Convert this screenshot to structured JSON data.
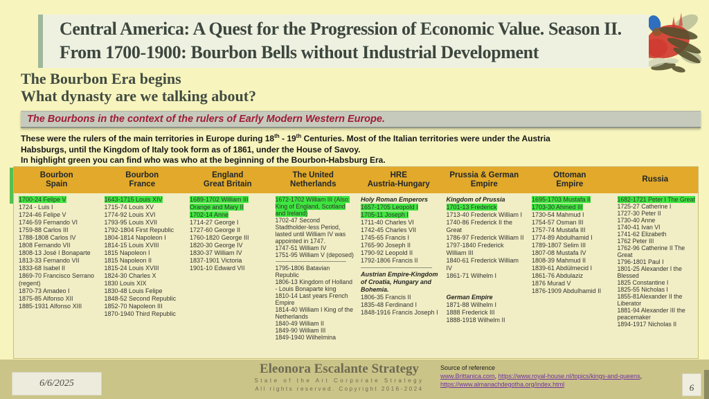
{
  "slide": {
    "title_line1": "Central America:  A Quest for the Progression of Economic Value. Season II.",
    "title_line2": "From 1700-1900: Bourbon Bells without Industrial Development",
    "subtitle_line1": "The Bourbon Era begins",
    "subtitle_line2": "What dynasty are we talking about?",
    "banner": "The Bourbons in the context of the rulers of Early Modern Western Europe.",
    "intro_lines": [
      "These were the rulers of the main territories in Europe during 18th - 19th Centuries. Most of the  Italian territories were under the Austria",
      "Habsburgs, until the Kingdom of Italy took form as of 1861, under the House of Savoy.",
      "In highlight green you can find who was who at the beginning of the Bourbon-Habsburg Era."
    ]
  },
  "table": {
    "highlight_color": "#3FE53F",
    "header_color": "#E2A92A",
    "columns": [
      {
        "header": [
          "Bourbon",
          "Spain"
        ],
        "items": [
          {
            "t": "1700-24 Felipe V",
            "h": true
          },
          {
            "t": "1724 - Luis I"
          },
          {
            "t": "1724-46 Felipe V"
          },
          {
            "t": "1746-59 Fernando VI"
          },
          {
            "t": "1759-88 Carlos III"
          },
          {
            "t": "1788-1808 Carlos IV"
          },
          {
            "t": "1808 Fernando VII"
          },
          {
            "t": "1808-13 José I Bonaparte"
          },
          {
            "t": "1813-33 Fernando VII"
          },
          {
            "t": "1833-68 Isabel II"
          },
          {
            "t": "1869-70 Francisco Serrano (regent)"
          },
          {
            "t": "1870-73 Amadeo I"
          },
          {
            "t": "1875-85 Alfonso XII"
          },
          {
            "t": "1885-1931 Alfonso XIII"
          }
        ]
      },
      {
        "header": [
          "Bourbon",
          "France"
        ],
        "items": [
          {
            "t": "1643-1715 Louis XIV",
            "h": true
          },
          {
            "t": "1715-74 Louis XV"
          },
          {
            "t": "1774-92 Louis XVI"
          },
          {
            "t": "1793-95 Louis XVII"
          },
          {
            "t": "1792-1804 First Republic"
          },
          {
            "t": "1804-1814 Napoleon I"
          },
          {
            "t": "1814-15 Louis XVIII"
          },
          {
            "t": "1815 Napoleon I"
          },
          {
            "t": "1815 Napoleon II"
          },
          {
            "t": "1815-24 Louis XVIII"
          },
          {
            "t": "1824-30 Charles X"
          },
          {
            "t": "1830 Louis XIX"
          },
          {
            "t": "1830-48 Louis Felipe"
          },
          {
            "t": "1848-52 Second Republic"
          },
          {
            "t": "1852-70 Napoleon III"
          },
          {
            "t": "1870-1940 Third Republic"
          }
        ]
      },
      {
        "header": [
          "England",
          "Great Britain"
        ],
        "items": [
          {
            "t": "1689-1702 William III Orange and Mary II",
            "h": true
          },
          {
            "t": "1702-14 Anne",
            "h": true
          },
          {
            "t": "1714-27 George I"
          },
          {
            "t": "1727-60 George II"
          },
          {
            "t": "1760-1820 George III"
          },
          {
            "t": "1820-30 George IV"
          },
          {
            "t": "1830-37 William IV"
          },
          {
            "t": "1837-1901 Victoria"
          },
          {
            "t": "1901-10 Edward VII"
          }
        ]
      },
      {
        "header": [
          "The United",
          "Netherlands"
        ],
        "items": [
          {
            "t": "1672-1702 William III (Also: King of England, Scotland and Ireland)",
            "h": true
          },
          {
            "t": "1702-47 Second Stadtholder-less Period, lasted until William IV was appointed in 1747."
          },
          {
            "t": "1747-51 William IV"
          },
          {
            "t": "1751-95 William V (deposed)"
          },
          {
            "d": true
          },
          {
            "t": "1795-1806 Batavian Republic"
          },
          {
            "t": "1806-13 Kingdom of Holland - Louis Bonaparte king"
          },
          {
            "t": "1810-14 Last years French Empire"
          },
          {
            "t": "1814-40 William I King of the Netherlands"
          },
          {
            "t": "1840-49 William II"
          },
          {
            "t": "1849-90 William III"
          },
          {
            "t": "1849-1940 Wilhelmina"
          }
        ]
      },
      {
        "header": [
          "HRE",
          "Austria-Hungary"
        ],
        "items": [
          {
            "t": "Holy Roman Emperors",
            "b": true
          },
          {
            "t": "1657-1705 Leopold I",
            "h": true
          },
          {
            "t": "1705-11 Joseph I",
            "h": true
          },
          {
            "t": "1711-40 Charles VI"
          },
          {
            "t": "1742-45 Charles VII"
          },
          {
            "t": "1745-65 Francis I"
          },
          {
            "t": "1765-90 Joseph II"
          },
          {
            "t": "1790-92 Leopold II"
          },
          {
            "t": "1792-1806 Francis II"
          },
          {
            "d": true
          },
          {
            "t": "Austrian Empire-Kingdom of Croatia, Hungary and Bohemia.",
            "b": true
          },
          {
            "t": "1806-35 Francis II"
          },
          {
            "t": "1835-48 Ferdinand I"
          },
          {
            "t": "1848-1916 Francis Joseph I"
          }
        ]
      },
      {
        "header": [
          "Prussia & German",
          "Empire"
        ],
        "items": [
          {
            "t": "Kingdom of Prussia",
            "b": true
          },
          {
            "t": "1701-13 Frederick",
            "h": true
          },
          {
            "t": "1713-40 Frederick William I"
          },
          {
            "t": "1740-86 Frederick II the Great"
          },
          {
            "t": "1786-97 Frederick William II"
          },
          {
            "t": "1797-1840 Frederick William III"
          },
          {
            "t": "1840-61 Frederick William IV"
          },
          {
            "t": "1861-71 Wilhelm I"
          },
          {
            "sp": true
          },
          {
            "sp": true
          },
          {
            "t": "German Empire",
            "b": true
          },
          {
            "t": "1871-88 Wilhelm I"
          },
          {
            "t": "1888 Frederick III"
          },
          {
            "t": "1888-1918 Wilhelm II"
          }
        ]
      },
      {
        "header": [
          "Ottoman",
          "Empire"
        ],
        "items": [
          {
            "t": "1695-1703 Mustafa II",
            "h": true
          },
          {
            "t": "1703-30 Ahmed III",
            "h": true
          },
          {
            "t": "1730-54 Mahmud I"
          },
          {
            "t": "1754-57 Osman III"
          },
          {
            "t": "1757-74 Mustafa III"
          },
          {
            "t": "1774-89 Abdulhamid I"
          },
          {
            "t": "1789-1807 Selim III"
          },
          {
            "t": "1807-08 Mustafa IV"
          },
          {
            "t": "1808-39 Mahmud II"
          },
          {
            "t": "1839-61 Abdülmecid I"
          },
          {
            "t": "1861-76 Abdulaziz"
          },
          {
            "t": "1876 Murad V"
          },
          {
            "t": "1876-1909 Abdulhamid II"
          }
        ]
      },
      {
        "header": [
          "Russia"
        ],
        "items": [
          {
            "t": "1682-1721 Peter I The Great",
            "h": true
          },
          {
            "t": "1725-27 Catherine I"
          },
          {
            "t": "1727-30 Peter II"
          },
          {
            "t": "1730-40 Anne"
          },
          {
            "t": "1740-41 Ivan VI"
          },
          {
            "t": "1741-62 Elizabeth"
          },
          {
            "t": "1762 Peter III"
          },
          {
            "t": "1762-96 Catherine II The Great"
          },
          {
            "t": "1796-1801 Paul I"
          },
          {
            "t": "1801-25 Alexander I the Blessed"
          },
          {
            "t": "1825 Constantine I"
          },
          {
            "t": "1825-55 Nicholas I"
          },
          {
            "t": "1855-81Alexander II the Liberator"
          },
          {
            "t": "1881-94 Alexander III the peacemaker"
          },
          {
            "t": "1894-1917 Nicholas II"
          }
        ]
      }
    ]
  },
  "footer": {
    "date": "6/6/2025",
    "brand": "Eleonora Escalante Strategy",
    "brand_sub1": "State of the Art Corporate Strategy",
    "brand_sub2": "All rights reserved. Copyright 2016-2024",
    "source_label": "Source of reference",
    "source_links": [
      "www.Brittanica.com",
      "https://www.royal-house.nl/topics/kings-and-queens",
      "https://www.almanachdegotha.org/index.html"
    ],
    "page": "6"
  }
}
